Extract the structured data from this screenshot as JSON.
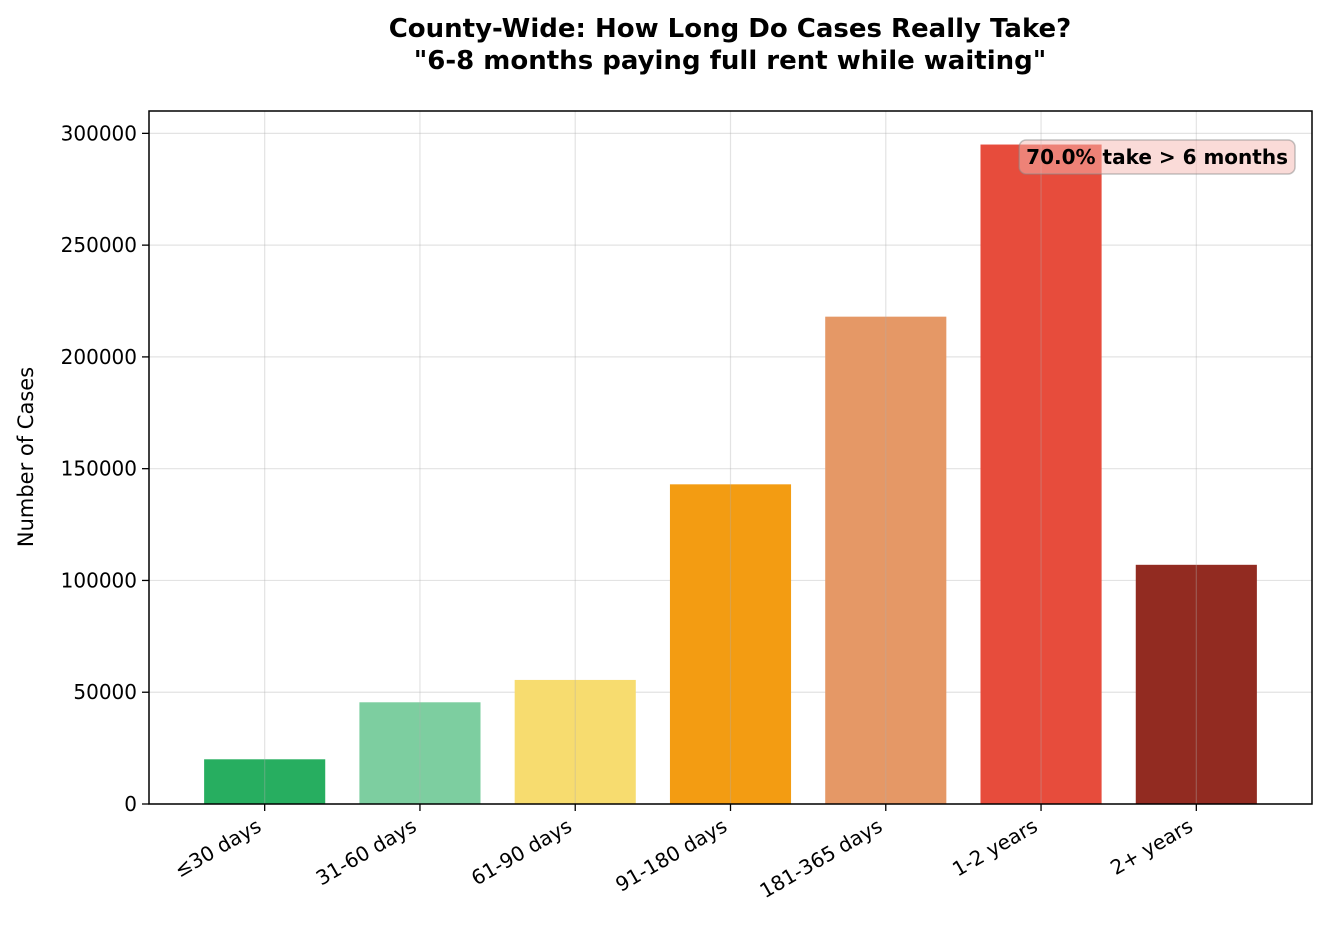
{
  "chart_data": {
    "type": "bar",
    "title": "County-Wide: How Long Do Cases Really Take?",
    "subtitle": "\"6-8 months paying full rent while waiting\"",
    "xlabel": "",
    "ylabel": "Number of Cases",
    "categories": [
      "≤30 days",
      "31-60 days",
      "61-90 days",
      "91-180 days",
      "181-365 days",
      "1-2 years",
      "2+ years"
    ],
    "values": [
      20000,
      45500,
      55500,
      143000,
      218000,
      295000,
      107000
    ],
    "colors": [
      "#27ae60",
      "#7dcea0",
      "#f7dc6f",
      "#f39c12",
      "#e59866",
      "#e74c3c",
      "#922b21"
    ],
    "ylim": [
      0,
      310000
    ],
    "yticks": [
      0,
      50000,
      100000,
      150000,
      200000,
      250000,
      300000
    ],
    "ytick_labels": [
      "0",
      "50000",
      "100000",
      "150000",
      "200000",
      "250000",
      "300000"
    ],
    "grid": true,
    "annotation": {
      "text": "70.0% take > 6 months",
      "position": "top-right",
      "box_color": "#f5b7b1"
    }
  }
}
